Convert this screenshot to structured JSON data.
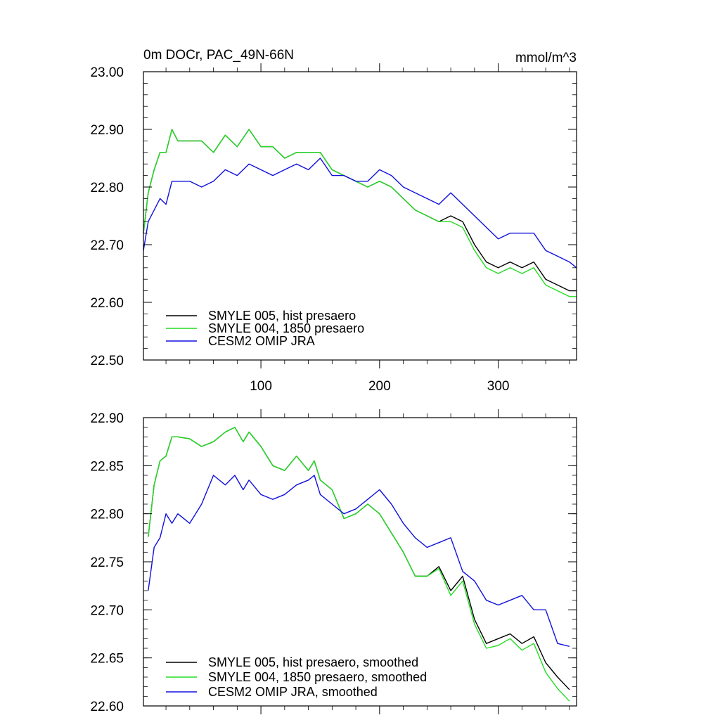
{
  "chart_data": [
    {
      "type": "line",
      "title": "0m DOCr, PAC_49N-66N",
      "units": "mmol/m^3",
      "xlim": [
        1,
        366
      ],
      "ylim": [
        22.5,
        23.0
      ],
      "x_ticks": [
        100,
        200,
        300
      ],
      "x_tick_labels": [
        "100",
        "200",
        "300"
      ],
      "y_ticks": [
        22.5,
        22.6,
        22.7,
        22.8,
        22.9,
        23.0
      ],
      "y_tick_labels": [
        "22.50",
        "22.60",
        "22.70",
        "22.80",
        "22.90",
        "23.00"
      ],
      "legend_position": "bottom-left",
      "series": [
        {
          "name": "SMYLE 005, hist presaero",
          "color": "#000000",
          "x": [
            1,
            5,
            10,
            15,
            20,
            25,
            30,
            40,
            50,
            60,
            70,
            80,
            90,
            100,
            110,
            120,
            130,
            140,
            150,
            160,
            170,
            180,
            190,
            200,
            210,
            220,
            230,
            240,
            250,
            260,
            270,
            280,
            290,
            300,
            310,
            320,
            330,
            340,
            350,
            360,
            366
          ],
          "values": [
            22.72,
            22.79,
            22.83,
            22.86,
            22.86,
            22.9,
            22.88,
            22.88,
            22.88,
            22.86,
            22.89,
            22.87,
            22.9,
            22.87,
            22.87,
            22.85,
            22.86,
            22.86,
            22.86,
            22.83,
            22.82,
            22.81,
            22.8,
            22.81,
            22.8,
            22.78,
            22.76,
            22.75,
            22.74,
            22.75,
            22.74,
            22.7,
            22.67,
            22.66,
            22.67,
            22.66,
            22.67,
            22.64,
            22.63,
            22.62,
            22.62
          ]
        },
        {
          "name": "SMYLE 004, 1850 presaero",
          "color": "#22dd22",
          "x": [
            1,
            5,
            10,
            15,
            20,
            25,
            30,
            40,
            50,
            60,
            70,
            80,
            90,
            100,
            110,
            120,
            130,
            140,
            150,
            160,
            170,
            180,
            190,
            200,
            210,
            220,
            230,
            240,
            250,
            260,
            270,
            280,
            290,
            300,
            310,
            320,
            330,
            340,
            350,
            360,
            366
          ],
          "values": [
            22.72,
            22.79,
            22.83,
            22.86,
            22.86,
            22.9,
            22.88,
            22.88,
            22.88,
            22.86,
            22.89,
            22.87,
            22.9,
            22.87,
            22.87,
            22.85,
            22.86,
            22.86,
            22.86,
            22.83,
            22.82,
            22.81,
            22.8,
            22.81,
            22.8,
            22.78,
            22.76,
            22.75,
            22.74,
            22.74,
            22.73,
            22.69,
            22.66,
            22.65,
            22.66,
            22.65,
            22.66,
            22.63,
            22.62,
            22.61,
            22.61
          ]
        },
        {
          "name": "CESM2 OMIP JRA",
          "color": "#1010dd",
          "x": [
            1,
            5,
            10,
            15,
            20,
            25,
            30,
            40,
            50,
            60,
            70,
            80,
            90,
            100,
            110,
            120,
            130,
            140,
            150,
            160,
            170,
            180,
            190,
            200,
            210,
            220,
            230,
            240,
            250,
            260,
            270,
            280,
            290,
            300,
            310,
            320,
            330,
            340,
            350,
            360,
            366
          ],
          "values": [
            22.69,
            22.74,
            22.76,
            22.78,
            22.77,
            22.81,
            22.81,
            22.81,
            22.8,
            22.81,
            22.83,
            22.82,
            22.84,
            22.83,
            22.82,
            22.83,
            22.84,
            22.83,
            22.85,
            22.82,
            22.82,
            22.81,
            22.81,
            22.83,
            22.82,
            22.8,
            22.79,
            22.78,
            22.77,
            22.79,
            22.77,
            22.75,
            22.73,
            22.71,
            22.72,
            22.72,
            22.72,
            22.69,
            22.68,
            22.67,
            22.66
          ]
        }
      ]
    },
    {
      "type": "line",
      "title": "",
      "xlim": [
        1,
        366
      ],
      "ylim": [
        22.6,
        22.9
      ],
      "x_ticks": [
        100,
        200,
        300
      ],
      "y_ticks": [
        22.6,
        22.65,
        22.7,
        22.75,
        22.8,
        22.85,
        22.9
      ],
      "y_tick_labels": [
        "22.60",
        "22.65",
        "22.70",
        "22.75",
        "22.80",
        "22.85",
        "22.90"
      ],
      "legend_position": "bottom-left",
      "series": [
        {
          "name": "SMYLE 005, hist presaero, smoothed",
          "color": "#000000",
          "x": [
            5,
            10,
            15,
            20,
            25,
            30,
            40,
            50,
            60,
            70,
            78,
            85,
            90,
            100,
            110,
            120,
            130,
            140,
            145,
            150,
            160,
            170,
            180,
            190,
            200,
            210,
            220,
            230,
            240,
            250,
            260,
            270,
            280,
            290,
            300,
            310,
            320,
            330,
            340,
            350,
            360
          ],
          "values": [
            22.776,
            22.83,
            22.855,
            22.86,
            22.88,
            22.88,
            22.878,
            22.87,
            22.875,
            22.885,
            22.89,
            22.875,
            22.885,
            22.87,
            22.85,
            22.845,
            22.86,
            22.845,
            22.855,
            22.835,
            22.825,
            22.795,
            22.8,
            22.81,
            22.8,
            22.78,
            22.76,
            22.735,
            22.735,
            22.745,
            22.72,
            22.735,
            22.69,
            22.665,
            22.67,
            22.675,
            22.665,
            22.672,
            22.645,
            22.63,
            22.617
          ]
        },
        {
          "name": "SMYLE 004, 1850 presaero, smoothed",
          "color": "#22dd22",
          "x": [
            5,
            10,
            15,
            20,
            25,
            30,
            40,
            50,
            60,
            70,
            78,
            85,
            90,
            100,
            110,
            120,
            130,
            140,
            145,
            150,
            160,
            170,
            180,
            190,
            200,
            210,
            220,
            230,
            240,
            250,
            260,
            270,
            280,
            290,
            300,
            310,
            320,
            330,
            340,
            350,
            360
          ],
          "values": [
            22.776,
            22.83,
            22.855,
            22.86,
            22.88,
            22.88,
            22.878,
            22.87,
            22.875,
            22.885,
            22.89,
            22.875,
            22.885,
            22.87,
            22.85,
            22.845,
            22.86,
            22.845,
            22.855,
            22.835,
            22.825,
            22.795,
            22.8,
            22.81,
            22.8,
            22.78,
            22.76,
            22.735,
            22.735,
            22.743,
            22.715,
            22.73,
            22.685,
            22.66,
            22.663,
            22.67,
            22.658,
            22.665,
            22.635,
            22.618,
            22.605
          ]
        },
        {
          "name": "CESM2 OMIP JRA, smoothed",
          "color": "#1010dd",
          "x": [
            5,
            10,
            15,
            20,
            25,
            30,
            40,
            50,
            60,
            70,
            78,
            85,
            90,
            100,
            110,
            120,
            130,
            140,
            145,
            150,
            160,
            170,
            180,
            190,
            200,
            210,
            220,
            230,
            240,
            250,
            260,
            270,
            280,
            290,
            300,
            310,
            320,
            330,
            340,
            350,
            360
          ],
          "values": [
            22.72,
            22.765,
            22.775,
            22.8,
            22.79,
            22.8,
            22.79,
            22.81,
            22.84,
            22.83,
            22.84,
            22.825,
            22.835,
            22.82,
            22.815,
            22.82,
            22.83,
            22.835,
            22.84,
            22.82,
            22.81,
            22.8,
            22.805,
            22.815,
            22.825,
            22.81,
            22.79,
            22.775,
            22.765,
            22.77,
            22.775,
            22.74,
            22.73,
            22.71,
            22.705,
            22.71,
            22.715,
            22.7,
            22.7,
            22.665,
            22.662
          ]
        }
      ]
    }
  ]
}
